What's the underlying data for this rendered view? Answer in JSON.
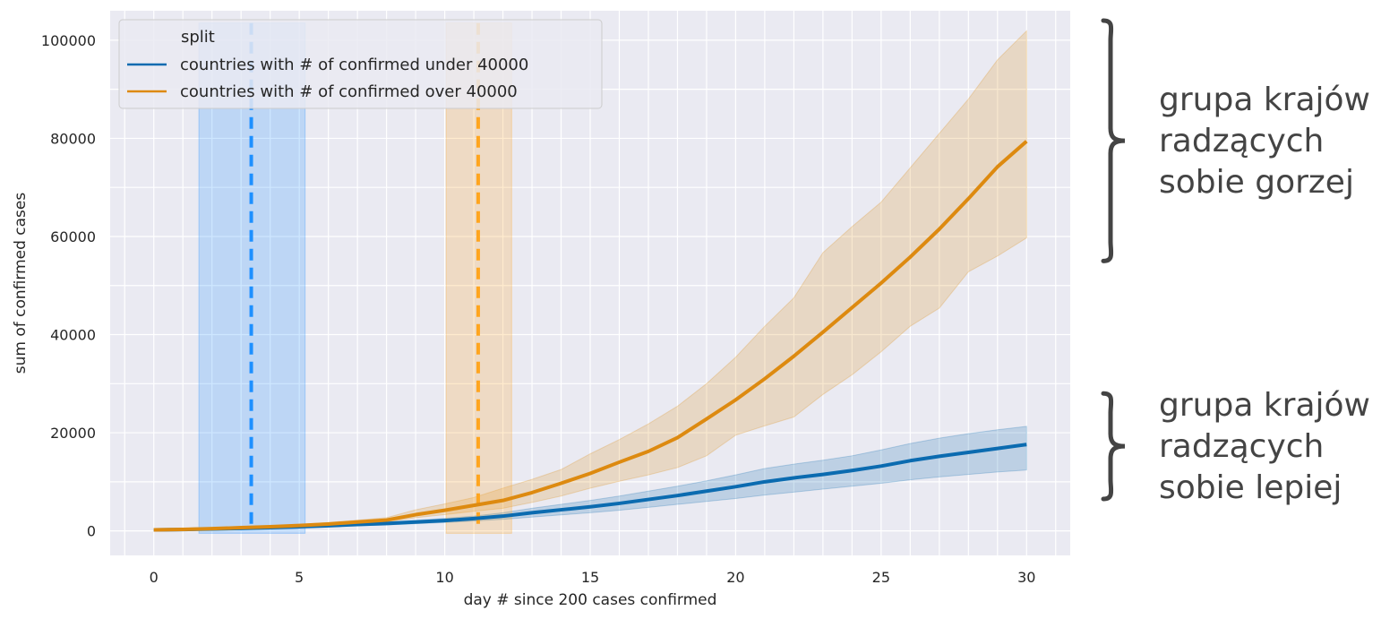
{
  "chart_data": {
    "type": "line",
    "title": "",
    "xlabel": "day # since 200 cases confirmed",
    "ylabel": "sum of confirmed cases",
    "xlim": [
      -1.5,
      31.5
    ],
    "ylim": [
      -5000,
      106000
    ],
    "xticks": [
      0,
      5,
      10,
      15,
      20,
      25,
      30
    ],
    "yticks": [
      0,
      20000,
      40000,
      60000,
      80000,
      100000
    ],
    "grid": true,
    "legend": {
      "title": "split",
      "placement": "top-left",
      "entries": [
        "countries with # of confirmed under 40000",
        "countries with # of confirmed over 40000"
      ]
    },
    "series": [
      {
        "name": "countries with # of confirmed under 40000",
        "color": "#0b6bb0",
        "x": [
          0,
          1,
          2,
          3,
          4,
          5,
          6,
          7,
          8,
          9,
          10,
          11,
          12,
          13,
          14,
          15,
          16,
          17,
          18,
          19,
          20,
          21,
          22,
          23,
          24,
          25,
          26,
          27,
          28,
          29,
          30
        ],
        "values": [
          200,
          280,
          380,
          500,
          650,
          850,
          1050,
          1300,
          1500,
          1800,
          2100,
          2500,
          3000,
          3700,
          4300,
          4900,
          5600,
          6400,
          7200,
          8100,
          9000,
          10000,
          10800,
          11500,
          12300,
          13200,
          14300,
          15200,
          16000,
          16800,
          17600
        ],
        "lower": [
          200,
          270,
          360,
          460,
          580,
          730,
          880,
          1050,
          1200,
          1450,
          1700,
          2000,
          2350,
          2800,
          3250,
          3700,
          4200,
          4800,
          5400,
          6000,
          6600,
          7300,
          7900,
          8500,
          9100,
          9700,
          10400,
          11000,
          11500,
          12000,
          12400
        ],
        "upper": [
          200,
          300,
          410,
          550,
          730,
          970,
          1230,
          1550,
          1800,
          2150,
          2550,
          3000,
          3700,
          4600,
          5400,
          6200,
          7100,
          8100,
          9100,
          10200,
          11400,
          12700,
          13600,
          14400,
          15300,
          16500,
          17800,
          18900,
          19800,
          20600,
          21300
        ]
      },
      {
        "name": "countries with # of confirmed over 40000",
        "color": "#dd8a10",
        "x": [
          0,
          1,
          2,
          3,
          4,
          5,
          6,
          7,
          8,
          9,
          10,
          11,
          12,
          13,
          14,
          15,
          16,
          17,
          18,
          19,
          20,
          21,
          22,
          23,
          24,
          25,
          26,
          27,
          28,
          29,
          30
        ],
        "values": [
          200,
          300,
          450,
          650,
          850,
          1100,
          1400,
          1800,
          2200,
          3300,
          4200,
          5200,
          6200,
          7800,
          9700,
          11700,
          14000,
          16200,
          19000,
          22800,
          26700,
          31000,
          35600,
          40500,
          45500,
          50500,
          55800,
          61500,
          67700,
          74200,
          79400
        ],
        "lower": [
          200,
          280,
          400,
          560,
          720,
          930,
          1150,
          1450,
          1800,
          2700,
          3300,
          4000,
          4600,
          5800,
          7100,
          8700,
          10100,
          11400,
          12900,
          15300,
          19500,
          21400,
          23200,
          27800,
          31800,
          36500,
          41700,
          45400,
          52800,
          56000,
          59700
        ],
        "upper": [
          200,
          330,
          520,
          760,
          1000,
          1300,
          1700,
          2200,
          2700,
          4300,
          5500,
          6800,
          8700,
          10500,
          12500,
          15700,
          18600,
          21800,
          25400,
          30000,
          35400,
          41700,
          47500,
          56700,
          62000,
          67000,
          74000,
          81000,
          88000,
          96000,
          101900
        ]
      }
    ],
    "vertical_markers": [
      {
        "series": "countries with # of confirmed under 40000",
        "x": 3.35,
        "lower": 1.55,
        "upper": 5.2,
        "color": "#1e90ff"
      },
      {
        "series": "countries with # of confirmed over 40000",
        "x": 11.15,
        "lower": 10.05,
        "upper": 12.3,
        "color": "#ffa51e"
      }
    ],
    "annotations": [
      {
        "lines": [
          "grupa krajów",
          "radzących",
          "sobie gorzej"
        ],
        "span": [
          55000,
          104000
        ]
      },
      {
        "lines": [
          "grupa krajów",
          "radzących",
          "sobie lepiej"
        ],
        "span": [
          6500,
          28000
        ]
      }
    ]
  }
}
